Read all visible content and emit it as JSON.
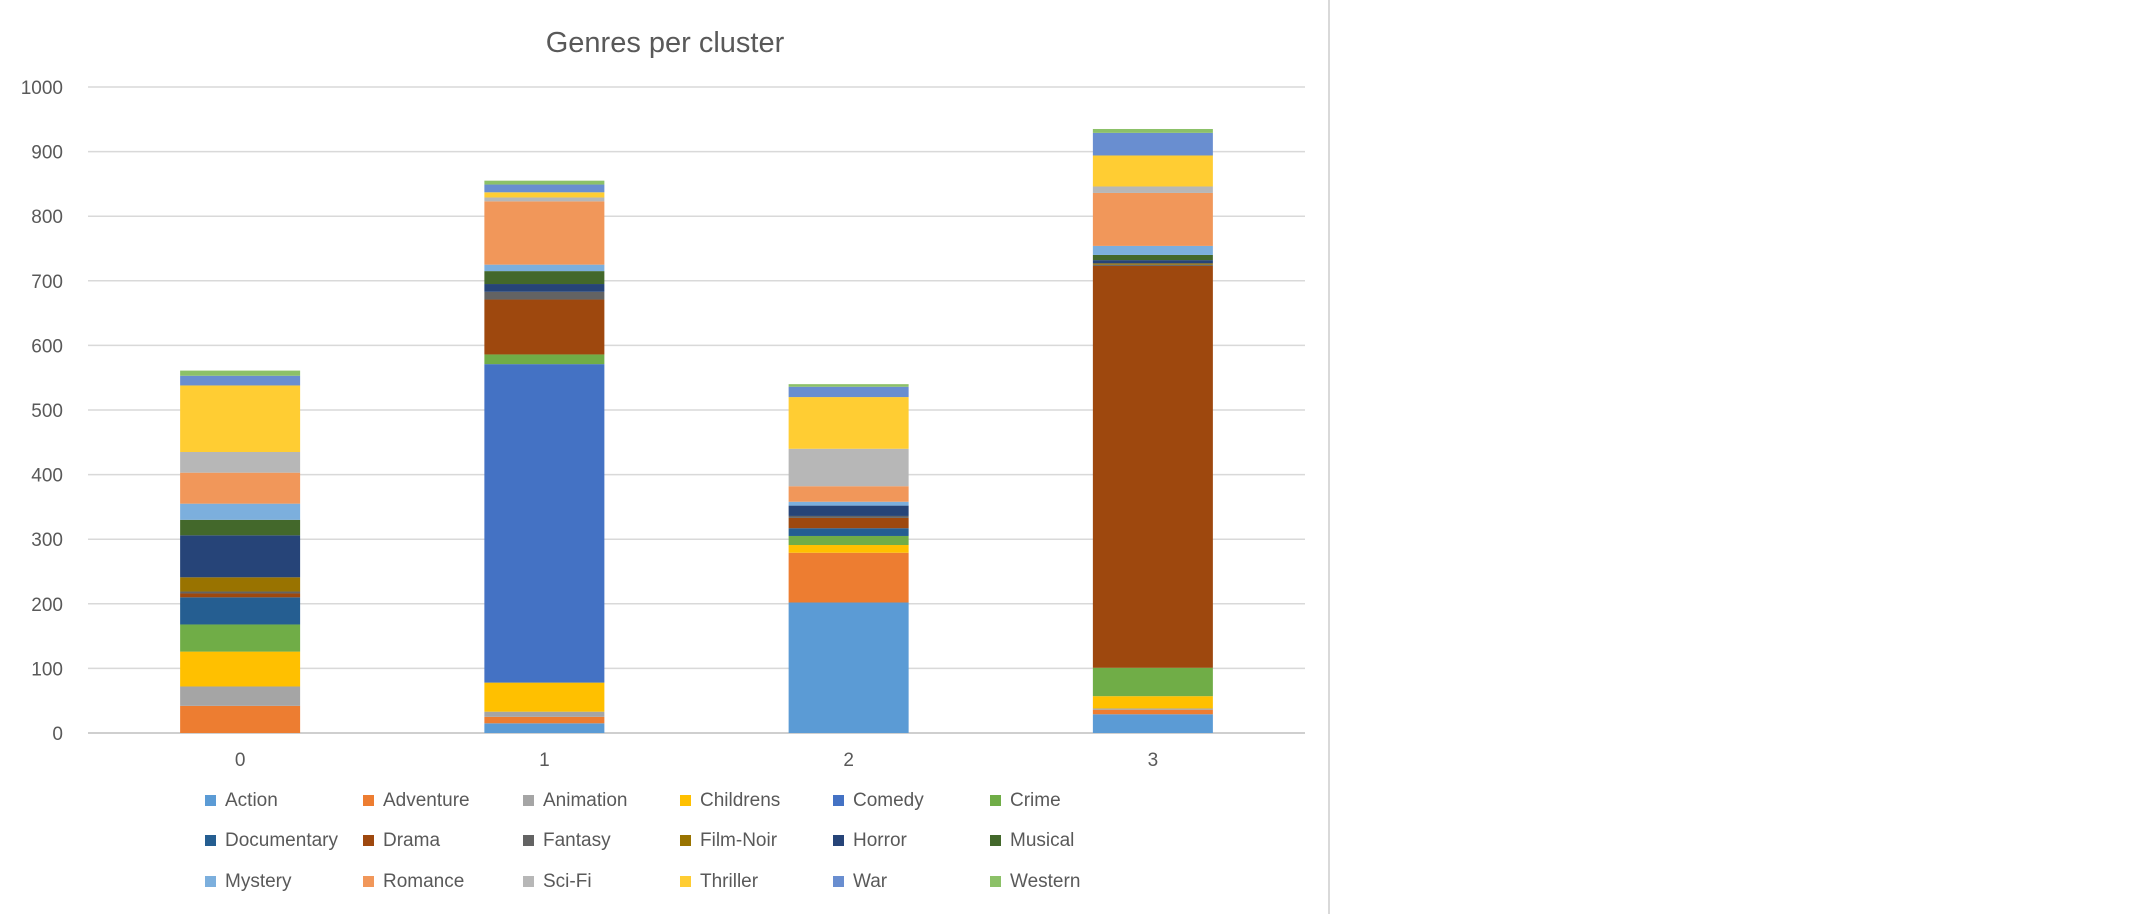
{
  "chart_data": {
    "type": "bar",
    "stacked": true,
    "title": "Genres per cluster",
    "xlabel": "",
    "ylabel": "",
    "categories": [
      "0",
      "1",
      "2",
      "3"
    ],
    "ylim": [
      0,
      1000
    ],
    "yticks": [
      0,
      100,
      200,
      300,
      400,
      500,
      600,
      700,
      800,
      900,
      1000
    ],
    "grid": true,
    "legend_position": "bottom",
    "series": [
      {
        "name": "Action",
        "color": "#5b9bd5",
        "values": [
          0,
          15,
          202,
          29
        ]
      },
      {
        "name": "Adventure",
        "color": "#ed7d31",
        "values": [
          42,
          10,
          77,
          7
        ]
      },
      {
        "name": "Animation",
        "color": "#a5a5a5",
        "values": [
          30,
          8,
          0,
          2
        ]
      },
      {
        "name": "Childrens",
        "color": "#ffc000",
        "values": [
          54,
          45,
          12,
          19
        ]
      },
      {
        "name": "Comedy",
        "color": "#4472c4",
        "values": [
          0,
          493,
          0,
          0
        ]
      },
      {
        "name": "Crime",
        "color": "#70ad47",
        "values": [
          42,
          15,
          14,
          44
        ]
      },
      {
        "name": "Documentary",
        "color": "#255e91",
        "values": [
          42,
          0,
          12,
          0
        ]
      },
      {
        "name": "Drama",
        "color": "#9e480e",
        "values": [
          6,
          85,
          16,
          622
        ]
      },
      {
        "name": "Fantasy",
        "color": "#636363",
        "values": [
          3,
          12,
          3,
          2
        ]
      },
      {
        "name": "Film-Noir",
        "color": "#997300",
        "values": [
          22,
          0,
          0,
          2
        ]
      },
      {
        "name": "Horror",
        "color": "#264478",
        "values": [
          65,
          12,
          16,
          5
        ]
      },
      {
        "name": "Musical",
        "color": "#43682b",
        "values": [
          24,
          20,
          0,
          8
        ]
      },
      {
        "name": "Mystery",
        "color": "#7cafdd",
        "values": [
          25,
          10,
          6,
          14
        ]
      },
      {
        "name": "Romance",
        "color": "#f1975a",
        "values": [
          48,
          98,
          24,
          82
        ]
      },
      {
        "name": "Sci-Fi",
        "color": "#b7b7b7",
        "values": [
          32,
          6,
          58,
          10
        ]
      },
      {
        "name": "Thriller",
        "color": "#ffcd33",
        "values": [
          103,
          8,
          80,
          48
        ]
      },
      {
        "name": "War",
        "color": "#698ed0",
        "values": [
          15,
          12,
          16,
          35
        ]
      },
      {
        "name": "Western",
        "color": "#8cc168",
        "values": [
          8,
          6,
          4,
          6
        ]
      }
    ]
  }
}
